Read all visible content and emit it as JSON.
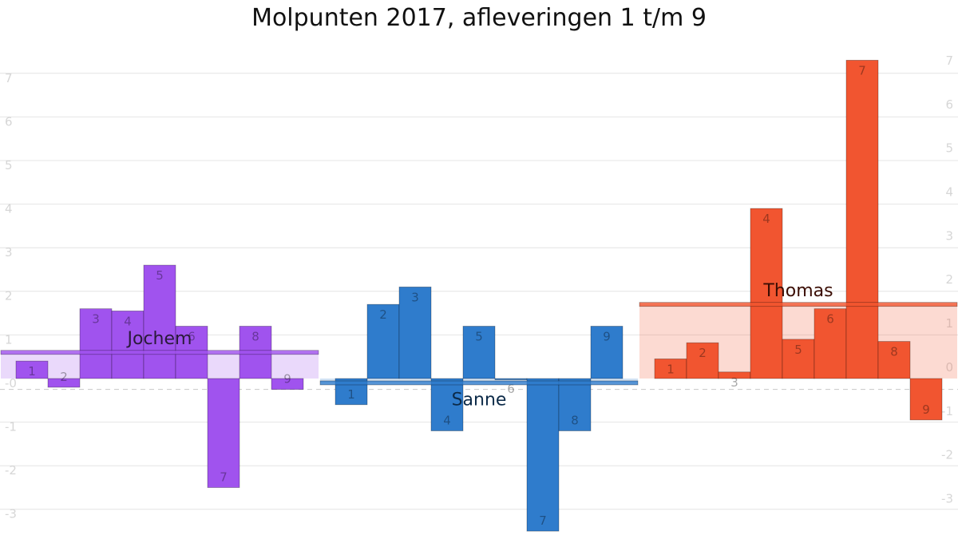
{
  "chart_data": {
    "type": "bar",
    "title": "Molpunten 2017, afleveringen 1 t/m 9",
    "xlabel": "",
    "ylabel": "",
    "left_axis": {
      "range": [
        -3.3,
        7.6
      ],
      "ticks": [
        "-3",
        "-2",
        "-1",
        "-0",
        "1",
        "2",
        "3",
        "4",
        "5",
        "6",
        "7"
      ]
    },
    "right_axis": {
      "range": [
        -3.1,
        7.2
      ],
      "ticks": [
        "-3",
        "-2",
        "-1",
        "0",
        "1",
        "2",
        "3",
        "4",
        "5",
        "6",
        "7"
      ]
    },
    "grid": true,
    "series": [
      {
        "name": "Jochem",
        "color": "#a053ee",
        "label_color": "#2a1a3a",
        "episodes": [
          "1",
          "2",
          "3",
          "4",
          "5",
          "6",
          "7",
          "8",
          "9"
        ],
        "values": [
          0.4,
          -0.2,
          1.6,
          1.55,
          2.6,
          1.2,
          -2.5,
          1.2,
          -0.25
        ],
        "average": 0.6
      },
      {
        "name": "Sanne",
        "color": "#2f7ccc",
        "label_color": "#0c2a48",
        "episodes": [
          "1",
          "2",
          "3",
          "4",
          "5",
          "6",
          "7",
          "8",
          "9"
        ],
        "values": [
          -0.6,
          1.7,
          2.1,
          -1.2,
          1.2,
          0.0,
          -3.5,
          -1.2,
          1.2
        ],
        "average": -0.1
      },
      {
        "name": "Thomas",
        "color": "#f15530",
        "label_color": "#3a0d04",
        "episodes": [
          "1",
          "2",
          "3",
          "4",
          "5",
          "6",
          "7",
          "8",
          "9"
        ],
        "values": [
          0.45,
          0.82,
          0.15,
          3.9,
          0.9,
          1.6,
          7.3,
          0.85,
          -0.95
        ],
        "average": 1.7
      }
    ]
  }
}
